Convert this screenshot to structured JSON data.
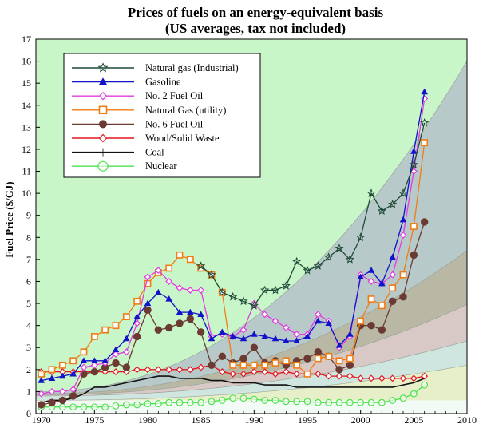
{
  "chart_data": {
    "type": "line",
    "title": "Prices of fuels on an energy-equivalent basis",
    "subtitle": "(US averages, tax not included)",
    "xlabel": "",
    "ylabel": "Fuel Price ($/GJ)",
    "xlim": [
      1969.5,
      2010
    ],
    "ylim": [
      0,
      17
    ],
    "x_ticks": [
      1970,
      1975,
      1980,
      1985,
      1990,
      1995,
      2000,
      2005,
      2010
    ],
    "y_ticks": [
      0,
      1,
      2,
      3,
      4,
      5,
      6,
      7,
      8,
      9,
      10,
      11,
      12,
      13,
      14,
      15,
      16,
      17
    ],
    "grid": false,
    "legend_position": "top-left",
    "band_colors": [
      "#e6efc7",
      "#c8f6c8",
      "#b7c9c8",
      "#b9b8a4",
      "#d9c9c6",
      "#cfe6e0"
    ],
    "series": [
      {
        "name": "Natural gas (Industrial)",
        "color": "#1f4a37",
        "marker": "star",
        "x": [
          1985,
          1986,
          1987,
          1988,
          1989,
          1990,
          1991,
          1992,
          1993,
          1994,
          1995,
          1996,
          1997,
          1998,
          1999,
          2000,
          2001,
          2002,
          2003,
          2004,
          2005,
          2006
        ],
        "y": [
          6.7,
          6.3,
          5.5,
          5.3,
          5.1,
          4.9,
          5.6,
          5.6,
          5.8,
          6.9,
          6.5,
          6.7,
          7.1,
          7.5,
          7.0,
          8.0,
          10.0,
          9.2,
          9.5,
          10.0,
          11.3,
          13.2
        ]
      },
      {
        "name": "Gasoline",
        "color": "#1212c8",
        "marker": "triangle",
        "x": [
          1970,
          1971,
          1972,
          1973,
          1974,
          1975,
          1976,
          1977,
          1978,
          1979,
          1980,
          1981,
          1982,
          1983,
          1984,
          1985,
          1986,
          1987,
          1988,
          1989,
          1990,
          1991,
          1992,
          1993,
          1994,
          1995,
          1996,
          1997,
          1998,
          1999,
          2000,
          2001,
          2002,
          2003,
          2004,
          2005,
          2006
        ],
        "y": [
          1.5,
          1.6,
          1.7,
          1.8,
          2.4,
          2.4,
          2.4,
          2.9,
          3.4,
          4.4,
          5.0,
          5.5,
          5.2,
          4.6,
          4.6,
          4.5,
          3.4,
          3.7,
          3.5,
          3.4,
          3.6,
          3.5,
          3.4,
          3.3,
          3.3,
          3.5,
          4.2,
          4.1,
          3.1,
          3.6,
          6.2,
          6.5,
          5.9,
          7.1,
          8.8,
          11.9,
          14.6
        ]
      },
      {
        "name": "No. 2 Fuel Oil",
        "color": "#e23be2",
        "marker": "diamond",
        "x": [
          1970,
          1971,
          1972,
          1973,
          1974,
          1975,
          1976,
          1977,
          1978,
          1979,
          1980,
          1981,
          1982,
          1983,
          1984,
          1985,
          1986,
          1987,
          1988,
          1989,
          1990,
          1991,
          1992,
          1993,
          1994,
          1995,
          1996,
          1997,
          1998,
          1999,
          2000,
          2001,
          2002,
          2003,
          2004,
          2005,
          2006
        ],
        "y": [
          0.9,
          1.0,
          1.0,
          1.1,
          2.1,
          2.2,
          2.3,
          2.7,
          2.8,
          4.1,
          6.2,
          6.5,
          6.0,
          5.7,
          5.6,
          5.6,
          3.5,
          3.6,
          3.5,
          3.8,
          5.0,
          4.5,
          4.2,
          3.9,
          3.6,
          3.6,
          4.5,
          4.2,
          3.0,
          3.5,
          6.3,
          6.0,
          5.9,
          6.3,
          8.1,
          11.0,
          14.3
        ]
      },
      {
        "name": "Natural Gas (utility)",
        "color": "#f07c14",
        "marker": "square",
        "x": [
          1970,
          1971,
          1972,
          1973,
          1974,
          1975,
          1976,
          1977,
          1978,
          1979,
          1980,
          1981,
          1982,
          1983,
          1984,
          1985,
          1986,
          1987,
          1988,
          1989,
          1990,
          1991,
          1992,
          1993,
          1994,
          1995,
          1996,
          1997,
          1998,
          1999,
          2000,
          2001,
          2002,
          2003,
          2004,
          2005,
          2006
        ],
        "y": [
          1.8,
          2.0,
          2.2,
          2.4,
          2.8,
          3.5,
          3.8,
          4.0,
          4.4,
          5.1,
          5.9,
          6.4,
          6.6,
          7.2,
          7.0,
          6.6,
          6.3,
          5.5,
          2.2,
          2.2,
          2.2,
          2.2,
          2.3,
          2.4,
          2.2,
          1.8,
          2.5,
          2.6,
          2.4,
          2.5,
          4.2,
          5.2,
          4.9,
          5.7,
          6.3,
          8.5,
          12.3
        ]
      },
      {
        "name": "No. 6 Fuel Oil",
        "color": "#6b3a32",
        "marker": "circle",
        "x": [
          1970,
          1971,
          1972,
          1973,
          1974,
          1975,
          1976,
          1977,
          1978,
          1979,
          1980,
          1981,
          1982,
          1983,
          1984,
          1985,
          1986,
          1987,
          1988,
          1989,
          1990,
          1991,
          1992,
          1993,
          1994,
          1995,
          1996,
          1997,
          1998,
          1999,
          2000,
          2001,
          2002,
          2003,
          2004,
          2005,
          2006
        ],
        "y": [
          0.4,
          0.5,
          0.6,
          0.8,
          1.8,
          1.9,
          2.1,
          2.3,
          2.1,
          3.5,
          4.7,
          3.8,
          3.9,
          4.1,
          4.3,
          3.7,
          2.2,
          2.6,
          2.3,
          2.5,
          3.0,
          2.3,
          2.4,
          2.2,
          2.4,
          2.5,
          2.8,
          2.6,
          2.0,
          2.2,
          4.0,
          4.0,
          3.8,
          5.1,
          5.3,
          7.2,
          8.7
        ]
      },
      {
        "name": "Wood/Solid Waste",
        "color": "#e0161e",
        "marker": "diamond",
        "x": [
          1970,
          1971,
          1972,
          1973,
          1974,
          1975,
          1976,
          1977,
          1978,
          1979,
          1980,
          1981,
          1982,
          1983,
          1984,
          1985,
          1986,
          1987,
          1988,
          1989,
          1990,
          1991,
          1992,
          1993,
          1994,
          1995,
          1996,
          1997,
          1998,
          1999,
          2000,
          2001,
          2002,
          2003,
          2004,
          2005,
          2006
        ],
        "y": [
          1.9,
          1.9,
          1.9,
          1.9,
          1.9,
          1.9,
          1.9,
          1.9,
          1.9,
          2.0,
          2.0,
          2.0,
          2.0,
          2.0,
          2.0,
          2.1,
          2.2,
          1.9,
          1.8,
          1.8,
          1.9,
          1.9,
          1.8,
          1.9,
          1.8,
          1.8,
          1.8,
          1.7,
          1.7,
          1.7,
          1.6,
          1.6,
          1.6,
          1.6,
          1.6,
          1.6,
          1.7
        ]
      },
      {
        "name": "Coal",
        "color": "#111111",
        "marker": "none",
        "x": [
          1970,
          1971,
          1972,
          1973,
          1974,
          1975,
          1976,
          1977,
          1978,
          1979,
          1980,
          1981,
          1982,
          1983,
          1984,
          1985,
          1986,
          1987,
          1988,
          1989,
          1990,
          1991,
          1992,
          1993,
          1994,
          1995,
          1996,
          1997,
          1998,
          1999,
          2000,
          2001,
          2002,
          2003,
          2004,
          2005,
          2006
        ],
        "y": [
          0.5,
          0.6,
          0.6,
          0.7,
          0.9,
          1.2,
          1.2,
          1.3,
          1.4,
          1.5,
          1.6,
          1.7,
          1.7,
          1.6,
          1.6,
          1.6,
          1.5,
          1.5,
          1.4,
          1.4,
          1.4,
          1.3,
          1.3,
          1.3,
          1.2,
          1.2,
          1.2,
          1.2,
          1.2,
          1.2,
          1.2,
          1.2,
          1.2,
          1.2,
          1.3,
          1.4,
          1.6
        ]
      },
      {
        "name": "Nuclear",
        "color": "#4ee24e",
        "marker": "circle-open",
        "x": [
          1970,
          1971,
          1972,
          1973,
          1974,
          1975,
          1976,
          1977,
          1978,
          1979,
          1980,
          1981,
          1982,
          1983,
          1984,
          1985,
          1986,
          1987,
          1988,
          1989,
          1990,
          1991,
          1992,
          1993,
          1994,
          1995,
          1996,
          1997,
          1998,
          1999,
          2000,
          2001,
          2002,
          2003,
          2004,
          2005,
          2006
        ],
        "y": [
          0.3,
          0.3,
          0.3,
          0.3,
          0.3,
          0.3,
          0.3,
          0.35,
          0.4,
          0.4,
          0.45,
          0.45,
          0.5,
          0.5,
          0.5,
          0.5,
          0.55,
          0.6,
          0.7,
          0.7,
          0.65,
          0.6,
          0.6,
          0.55,
          0.55,
          0.55,
          0.5,
          0.5,
          0.5,
          0.5,
          0.5,
          0.5,
          0.5,
          0.6,
          0.7,
          0.9,
          1.3
        ]
      }
    ]
  }
}
